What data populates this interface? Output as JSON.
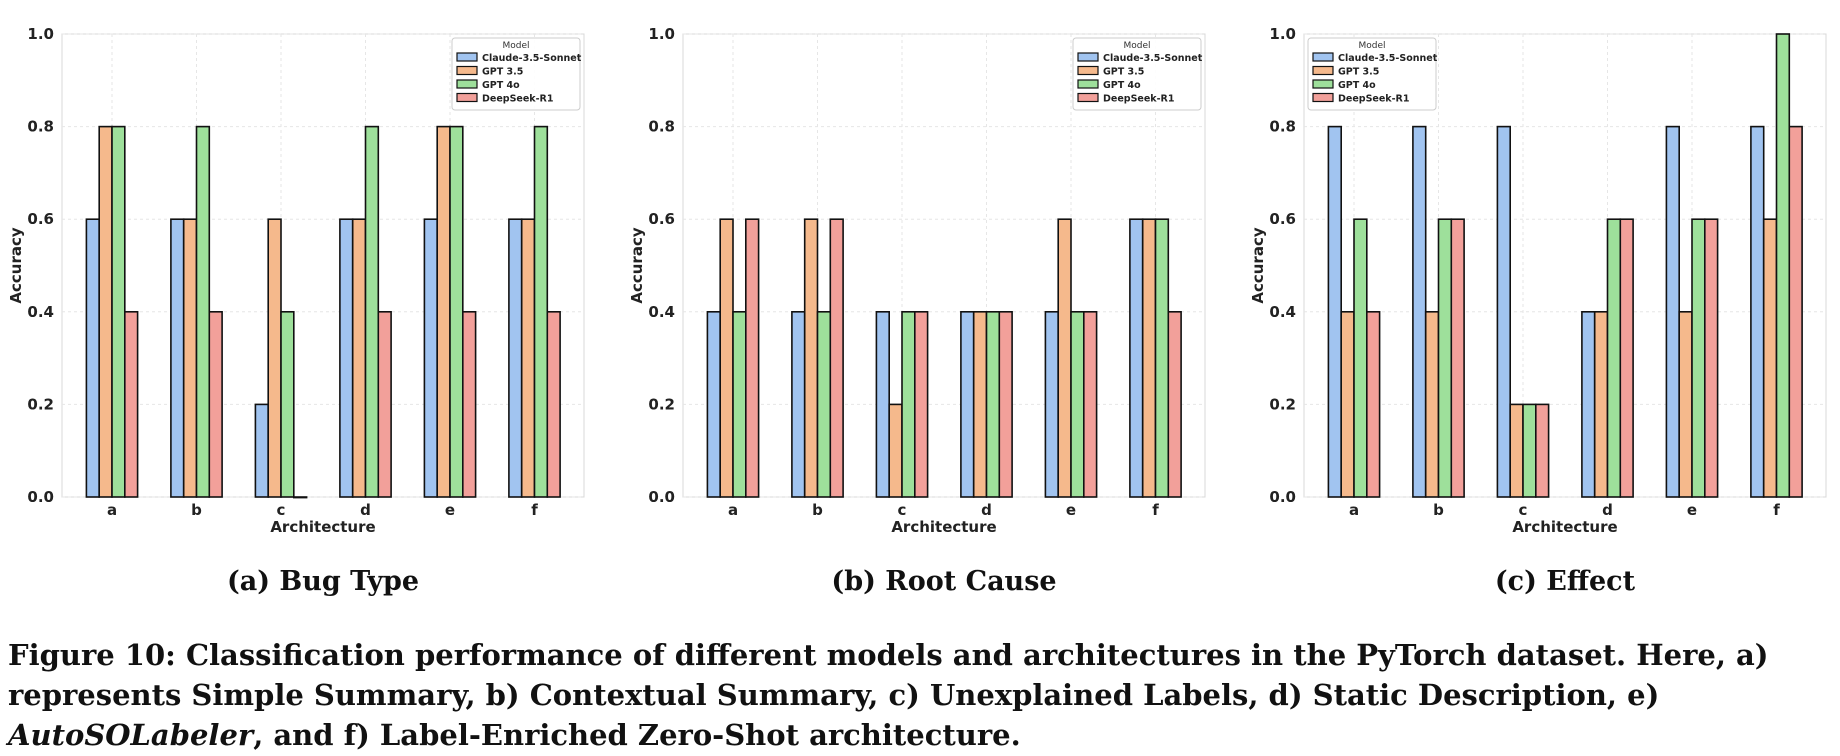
{
  "figure": {
    "caption_prefix": "Figure 10: Classification performance of different models and architectures in the PyTorch dataset. Here, a) represents Simple Summary, b) Contextual Summary, c) Unexplained Labels, d) Static Description, e) ",
    "caption_italic": "AutoSOLabeler",
    "caption_suffix": ", and f) Label-Enriched Zero-Shot architecture."
  },
  "colors": {
    "Claude-3.5-Sonnet": "#a1c4f0",
    "GPT 3.5": "#f5b98c",
    "GPT 4o": "#9ee09b",
    "DeepSeek-R1": "#f2a09a"
  },
  "chart_data": [
    {
      "type": "bar",
      "subtitle": "(a) Bug Type",
      "xlabel": "Architecture",
      "ylabel": "Accuracy",
      "ylim": [
        0,
        1.0
      ],
      "yticks": [
        "0.0",
        "0.2",
        "0.4",
        "0.6",
        "0.8",
        "1.0"
      ],
      "grid": true,
      "legend_title": "Model",
      "legend_position": "top-right",
      "categories": [
        "a",
        "b",
        "c",
        "d",
        "e",
        "f"
      ],
      "series": [
        {
          "name": "Claude-3.5-Sonnet",
          "values": [
            0.6,
            0.6,
            0.2,
            0.6,
            0.6,
            0.6
          ]
        },
        {
          "name": "GPT 3.5",
          "values": [
            0.8,
            0.6,
            0.6,
            0.6,
            0.8,
            0.6
          ]
        },
        {
          "name": "GPT 4o",
          "values": [
            0.8,
            0.8,
            0.4,
            0.8,
            0.8,
            0.8
          ]
        },
        {
          "name": "DeepSeek-R1",
          "values": [
            0.4,
            0.4,
            0.0,
            0.4,
            0.4,
            0.4
          ]
        }
      ]
    },
    {
      "type": "bar",
      "subtitle": "(b) Root Cause",
      "xlabel": "Architecture",
      "ylabel": "Accuracy",
      "ylim": [
        0,
        1.0
      ],
      "yticks": [
        "0.0",
        "0.2",
        "0.4",
        "0.6",
        "0.8",
        "1.0"
      ],
      "grid": true,
      "legend_title": "Model",
      "legend_position": "top-right",
      "categories": [
        "a",
        "b",
        "c",
        "d",
        "e",
        "f"
      ],
      "series": [
        {
          "name": "Claude-3.5-Sonnet",
          "values": [
            0.4,
            0.4,
            0.4,
            0.4,
            0.4,
            0.6
          ]
        },
        {
          "name": "GPT 3.5",
          "values": [
            0.6,
            0.6,
            0.2,
            0.4,
            0.6,
            0.6
          ]
        },
        {
          "name": "GPT 4o",
          "values": [
            0.4,
            0.4,
            0.4,
            0.4,
            0.4,
            0.6
          ]
        },
        {
          "name": "DeepSeek-R1",
          "values": [
            0.6,
            0.6,
            0.4,
            0.4,
            0.4,
            0.4
          ]
        }
      ]
    },
    {
      "type": "bar",
      "subtitle": "(c) Effect",
      "xlabel": "Architecture",
      "ylabel": "Accuracy",
      "ylim": [
        0,
        1.0
      ],
      "yticks": [
        "0.0",
        "0.2",
        "0.4",
        "0.6",
        "0.8",
        "1.0"
      ],
      "grid": true,
      "legend_title": "Model",
      "legend_position": "top-left",
      "categories": [
        "a",
        "b",
        "c",
        "d",
        "e",
        "f"
      ],
      "series": [
        {
          "name": "Claude-3.5-Sonnet",
          "values": [
            0.8,
            0.8,
            0.8,
            0.4,
            0.8,
            0.8
          ]
        },
        {
          "name": "GPT 3.5",
          "values": [
            0.4,
            0.4,
            0.2,
            0.4,
            0.4,
            0.6
          ]
        },
        {
          "name": "GPT 4o",
          "values": [
            0.6,
            0.6,
            0.2,
            0.6,
            0.6,
            1.0
          ]
        },
        {
          "name": "DeepSeek-R1",
          "values": [
            0.4,
            0.6,
            0.2,
            0.6,
            0.6,
            0.8
          ]
        }
      ]
    }
  ]
}
